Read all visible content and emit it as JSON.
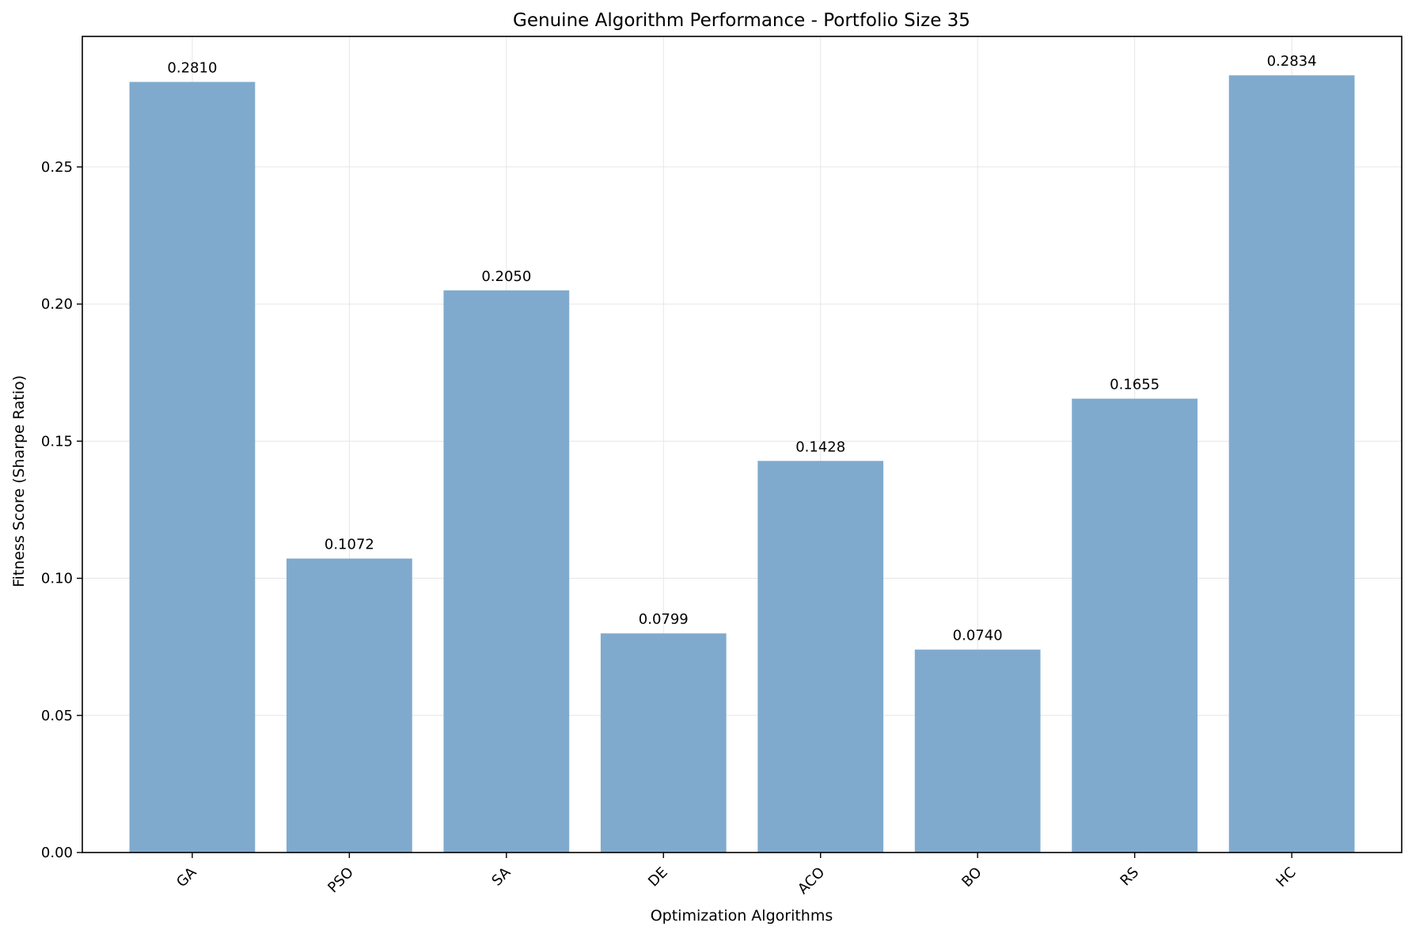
{
  "chart_data": {
    "type": "bar",
    "title": "Genuine Algorithm Performance - Portfolio Size 35",
    "xlabel": "Optimization Algorithms",
    "ylabel": "Fitness Score (Sharpe Ratio)",
    "categories": [
      "GA",
      "PSO",
      "SA",
      "DE",
      "ACO",
      "BO",
      "RS",
      "HC"
    ],
    "values": [
      0.281,
      0.1072,
      0.205,
      0.0799,
      0.1428,
      0.074,
      0.1655,
      0.2834
    ],
    "value_labels": [
      "0.2810",
      "0.1072",
      "0.2050",
      "0.0799",
      "0.1428",
      "0.0740",
      "0.1655",
      "0.2834"
    ],
    "ylim": [
      0,
      0.2976
    ],
    "yticks": [
      0.0,
      0.05,
      0.1,
      0.15,
      0.2,
      0.25
    ],
    "ytick_labels": [
      "0.00",
      "0.05",
      "0.10",
      "0.15",
      "0.20",
      "0.25"
    ],
    "grid": true,
    "legend": "none",
    "bar_color": "#7ba7cb",
    "grid_color": "#e6e6e6",
    "axis_color": "#000000",
    "xtick_rotation_deg": 45
  }
}
